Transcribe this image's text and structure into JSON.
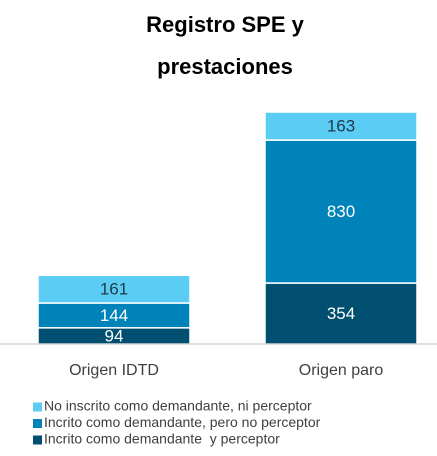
{
  "chart_data": {
    "type": "stacked_bar",
    "title": [
      "Registro SPE y",
      "prestaciones"
    ],
    "categories": [
      "Origen IDTD",
      "Origen paro"
    ],
    "series": [
      {
        "name": "No inscrito como demandante, ni perceptor",
        "color": "#5bcdf5",
        "values": [
          161,
          163
        ]
      },
      {
        "name": "Incrito como demandante, pero no perceptor",
        "color": "#0083b8",
        "values": [
          144,
          830
        ]
      },
      {
        "name": "Incrito como demandante  y perceptor",
        "color": "#004f70",
        "values": [
          94,
          354
        ]
      }
    ],
    "legend": "bottom-left"
  }
}
